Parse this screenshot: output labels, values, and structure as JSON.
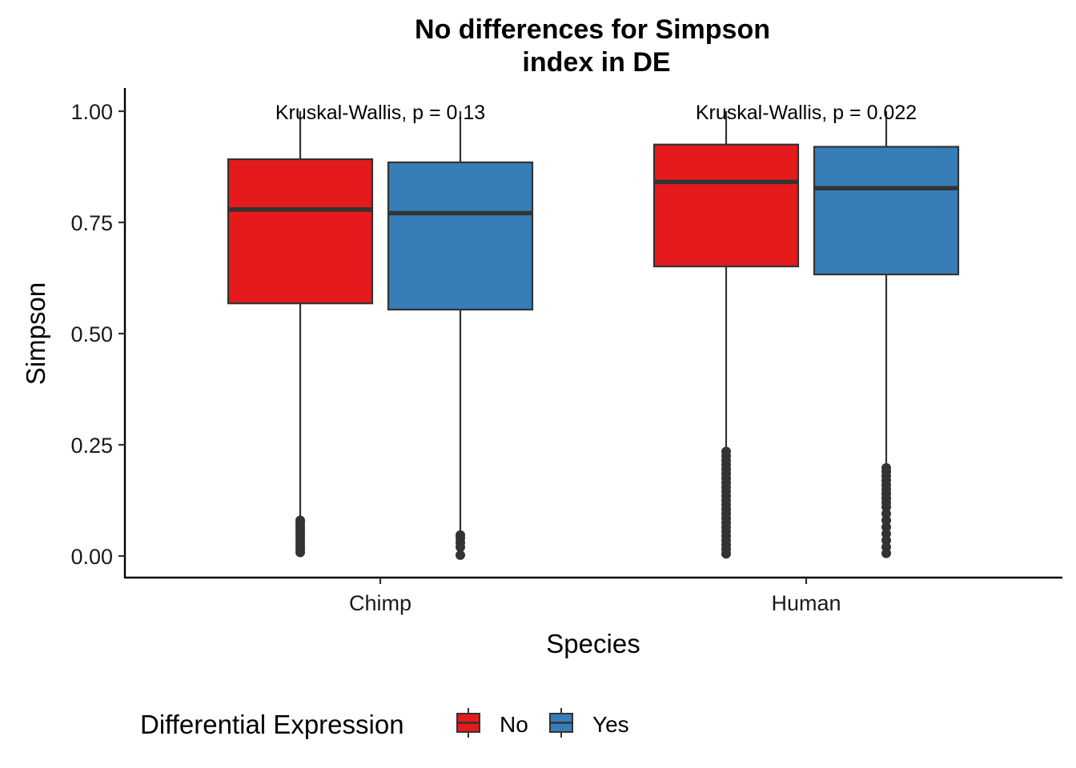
{
  "chart_data": {
    "type": "boxplot",
    "title_lines": [
      "No differences for Simpson",
      "index in DE"
    ],
    "xlabel": "Species",
    "ylabel": "Simpson",
    "categories": [
      "Chimp",
      "Human"
    ],
    "ylim": [
      -0.05,
      1.05
    ],
    "yticks": [
      0.0,
      0.25,
      0.5,
      0.75,
      1.0
    ],
    "ytick_labels": [
      "0.00",
      "0.25",
      "0.50",
      "0.75",
      "1.00"
    ],
    "grid": false,
    "legend": {
      "title": "Differential Expression",
      "position": "bottom",
      "entries": [
        {
          "label": "No",
          "color": "#E41A1C"
        },
        {
          "label": "Yes",
          "color": "#377EB8"
        }
      ]
    },
    "annotations": [
      {
        "category": "Chimp",
        "text": "Kruskal-Wallis, p = 0.13",
        "y": 1.0
      },
      {
        "category": "Human",
        "text": "Kruskal-Wallis, p = 0.022",
        "y": 1.0
      }
    ],
    "series": [
      {
        "name": "No",
        "color": "#E41A1C",
        "boxes": [
          {
            "category": "Chimp",
            "whisker_low": 0.085,
            "q1": 0.568,
            "median": 0.779,
            "q3": 0.892,
            "whisker_high": 1.0,
            "outliers": [
              0.008,
              0.015,
              0.022,
              0.03,
              0.038,
              0.045,
              0.052,
              0.06,
              0.067,
              0.075,
              0.08
            ]
          },
          {
            "category": "Human",
            "whisker_low": 0.24,
            "q1": 0.651,
            "median": 0.841,
            "q3": 0.925,
            "whisker_high": 1.0,
            "outliers": [
              0.005,
              0.015,
              0.025,
              0.035,
              0.045,
              0.055,
              0.065,
              0.075,
              0.085,
              0.095,
              0.105,
              0.115,
              0.125,
              0.135,
              0.145,
              0.155,
              0.165,
              0.175,
              0.185,
              0.195,
              0.205,
              0.215,
              0.225,
              0.235
            ]
          }
        ]
      },
      {
        "name": "Yes",
        "color": "#377EB8",
        "boxes": [
          {
            "category": "Chimp",
            "whisker_low": 0.05,
            "q1": 0.554,
            "median": 0.771,
            "q3": 0.885,
            "whisker_high": 1.0,
            "outliers": [
              0.002,
              0.02,
              0.03,
              0.04,
              0.047
            ]
          },
          {
            "category": "Human",
            "whisker_low": 0.2,
            "q1": 0.633,
            "median": 0.827,
            "q3": 0.92,
            "whisker_high": 1.0,
            "outliers": [
              0.006,
              0.02,
              0.035,
              0.05,
              0.065,
              0.08,
              0.095,
              0.11,
              0.12,
              0.13,
              0.14,
              0.15,
              0.16,
              0.17,
              0.18,
              0.19,
              0.198
            ]
          }
        ]
      }
    ]
  }
}
